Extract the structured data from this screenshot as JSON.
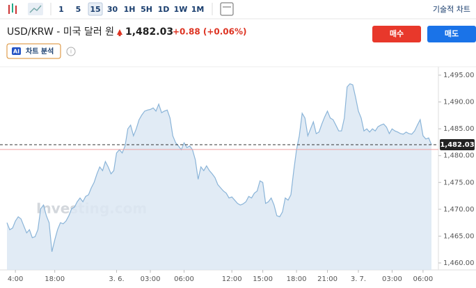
{
  "toolbar": {
    "intervals": [
      "1",
      "5",
      "15",
      "30",
      "1H",
      "5H",
      "1D",
      "1W",
      "1M"
    ],
    "selected": "15",
    "technical_chart": "기술적 차트"
  },
  "header": {
    "title": "USD/KRW - 미국 달러 원",
    "change": "+0.88 (+0.06%)",
    "buy": "매수",
    "sell": "매도",
    "ai_badge": "AI",
    "ai_analysis": "차트 분석"
  },
  "chart_data": {
    "type": "area",
    "watermark": "Investing.com",
    "color": "#8ab4d8",
    "fill": "#dce8f3",
    "series": [
      {
        "name": "USD/KRW",
        "values": [
          1467.5,
          1466.2,
          1466.5,
          1467.8,
          1468.6,
          1468.2,
          1466.9,
          1465.6,
          1466.2,
          1464.7,
          1464.9,
          1466.2,
          1470.1,
          1470.8,
          1468.8,
          1467.5,
          1462.1,
          1464.3,
          1466.2,
          1467.5,
          1467.3,
          1467.8,
          1468.8,
          1470.1,
          1470.4,
          1471.4,
          1472.1,
          1471.4,
          1472.4,
          1472.7,
          1474.0,
          1475.0,
          1476.6,
          1477.9,
          1477.2,
          1478.9,
          1477.9,
          1476.6,
          1477.2,
          1480.5,
          1481.1,
          1480.5,
          1481.8,
          1485.0,
          1485.7,
          1483.7,
          1485.0,
          1486.7,
          1487.6,
          1488.3,
          1488.5,
          1488.6,
          1488.9,
          1488.3,
          1489.6,
          1488.0,
          1488.3,
          1488.5,
          1487.0,
          1483.7,
          1482.4,
          1481.8,
          1481.1,
          1482.4,
          1481.5,
          1481.8,
          1481.1,
          1479.2,
          1475.6,
          1477.9,
          1477.2,
          1478.1,
          1477.2,
          1476.6,
          1475.9,
          1474.6,
          1474.0,
          1473.4,
          1473.0,
          1472.1,
          1472.3,
          1471.7,
          1471.1,
          1470.8,
          1471.0,
          1471.4,
          1472.4,
          1472.1,
          1473.0,
          1473.4,
          1475.3,
          1475.0,
          1471.1,
          1471.4,
          1472.1,
          1470.8,
          1468.8,
          1468.6,
          1469.5,
          1472.1,
          1471.7,
          1472.7,
          1477.2,
          1481.1,
          1483.7,
          1487.9,
          1487.0,
          1483.7,
          1485.0,
          1486.3,
          1484.1,
          1484.4,
          1485.9,
          1487.2,
          1488.3,
          1487.0,
          1486.7,
          1485.7,
          1484.6,
          1484.6,
          1487.0,
          1492.8,
          1493.4,
          1493.2,
          1490.9,
          1488.3,
          1487.0,
          1484.6,
          1485.0,
          1484.4,
          1485.0,
          1484.6,
          1485.4,
          1485.7,
          1485.9,
          1485.3,
          1484.1,
          1485.0,
          1484.6,
          1484.4,
          1484.1,
          1484.0,
          1484.4,
          1484.1,
          1484.0,
          1484.6,
          1485.7,
          1486.7,
          1483.7,
          1483.1,
          1483.3,
          1482.03
        ]
      }
    ],
    "xlim": [
      0,
      151
    ],
    "xticks": [
      {
        "value": 3,
        "label": "4:00"
      },
      {
        "value": 17,
        "label": "18:00"
      },
      {
        "value": 39,
        "label": "3. 6."
      },
      {
        "value": 51,
        "label": "03:00"
      },
      {
        "value": 63,
        "label": "06:00"
      },
      {
        "value": 80,
        "label": "12:00"
      },
      {
        "value": 91,
        "label": "15:00"
      },
      {
        "value": 103,
        "label": "18:00"
      },
      {
        "value": 114,
        "label": "21:00"
      },
      {
        "value": 125,
        "label": "3. 7."
      },
      {
        "value": 137,
        "label": "03:00"
      },
      {
        "value": 148,
        "label": "06:00"
      }
    ],
    "ylim": [
      1458.7,
      1496.3
    ],
    "yticks": [
      {
        "value": 1460,
        "label": "1,460.00"
      },
      {
        "value": 1465,
        "label": "1,465.00"
      },
      {
        "value": 1470,
        "label": "1,470.00"
      },
      {
        "value": 1475,
        "label": "1,475.00"
      },
      {
        "value": 1480,
        "label": "1,480.00"
      },
      {
        "value": 1485,
        "label": "1,485.00"
      },
      {
        "value": 1490,
        "label": "1,490.00"
      },
      {
        "value": 1495,
        "label": "1,495.00"
      }
    ],
    "last_price": {
      "value": 1482.03,
      "label": "1,482.03"
    },
    "previous_close": 1481.15
  }
}
